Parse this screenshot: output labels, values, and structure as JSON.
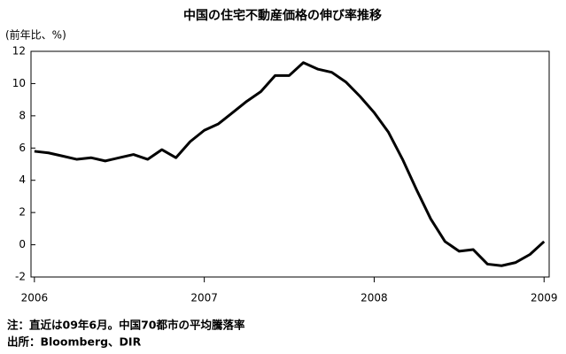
{
  "chart_data": {
    "type": "line",
    "title": "中国の住宅不動産価格の伸び率推移",
    "y_label": "(前年比、%)",
    "notes": [
      "注：直近は09年6月。中国70都市の平均騰落率",
      "出所：Bloomberg、DIR"
    ],
    "x": [
      2006,
      2006.083,
      2006.167,
      2006.25,
      2006.333,
      2006.417,
      2006.5,
      2006.583,
      2006.667,
      2006.75,
      2006.833,
      2006.917,
      2007,
      2007.083,
      2007.167,
      2007.25,
      2007.333,
      2007.417,
      2007.5,
      2007.583,
      2007.667,
      2007.75,
      2007.833,
      2007.917,
      2008,
      2008.083,
      2008.167,
      2008.25,
      2008.333,
      2008.417,
      2008.5,
      2008.583,
      2008.667,
      2008.75,
      2008.833,
      2008.917,
      2009
    ],
    "series": [
      {
        "name": "伸び率",
        "color": "#000000",
        "values": [
          5.8,
          5.7,
          5.5,
          5.3,
          5.4,
          5.2,
          5.4,
          5.6,
          5.3,
          5.9,
          5.4,
          6.4,
          7.1,
          7.5,
          8.2,
          8.9,
          9.5,
          10.5,
          10.5,
          11.3,
          10.9,
          10.7,
          10.1,
          9.2,
          8.2,
          7.0,
          5.3,
          3.4,
          1.6,
          0.2,
          -0.4,
          -0.3,
          -1.2,
          -1.3,
          -1.1,
          -0.6,
          0.2
        ]
      }
    ],
    "xlim": [
      2005.98,
      2009.03
    ],
    "xticks": [
      2006,
      2007,
      2008,
      2009
    ],
    "ylim": [
      -2,
      12
    ],
    "yticks": [
      -2,
      0,
      2,
      4,
      6,
      8,
      10,
      12
    ],
    "grid": false
  }
}
